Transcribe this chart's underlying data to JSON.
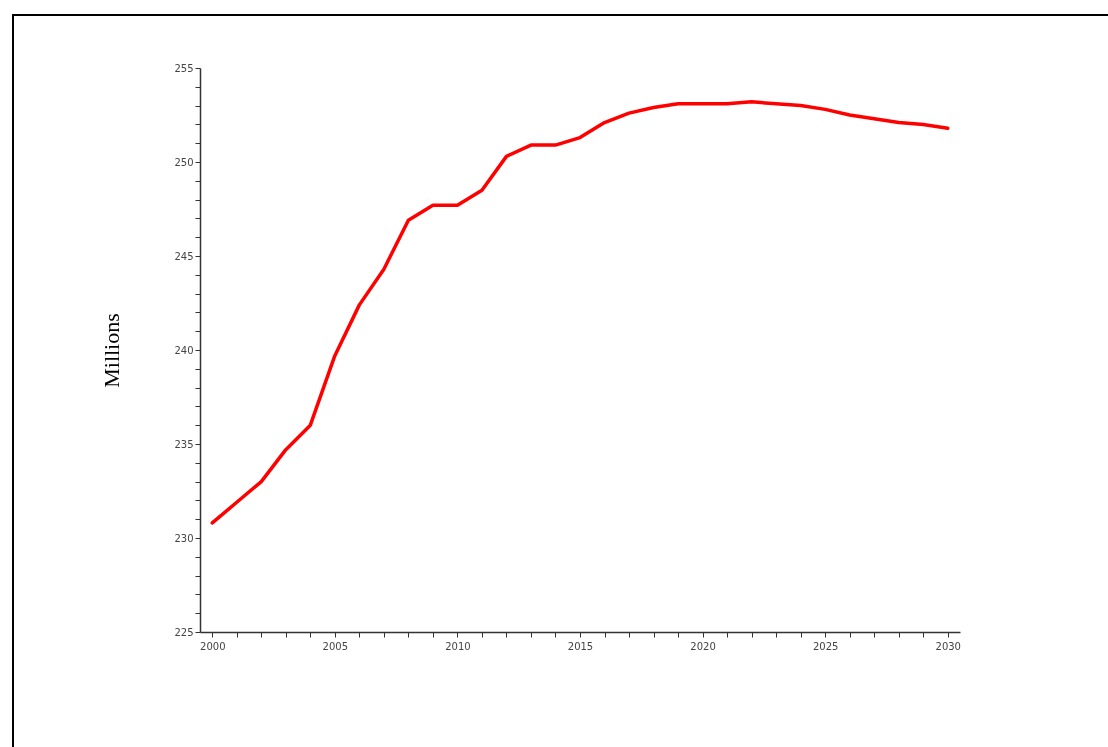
{
  "chart_data": {
    "type": "line",
    "ylabel": "Millions",
    "x": [
      2000,
      2001,
      2002,
      2003,
      2004,
      2005,
      2006,
      2007,
      2008,
      2009,
      2010,
      2011,
      2012,
      2013,
      2014,
      2015,
      2016,
      2017,
      2018,
      2019,
      2020,
      2021,
      2022,
      2023,
      2024,
      2025,
      2026,
      2027,
      2028,
      2029,
      2030
    ],
    "series": [
      {
        "color": "#ff0000",
        "values": [
          230.8,
          231.9,
          233.0,
          234.7,
          236.0,
          239.7,
          242.4,
          244.3,
          246.9,
          247.7,
          247.7,
          248.5,
          250.3,
          250.9,
          250.9,
          251.3,
          252.1,
          252.6,
          252.9,
          253.1,
          253.1,
          253.1,
          253.2,
          253.1,
          253.0,
          252.8,
          252.5,
          252.3,
          252.1,
          252.0,
          251.8
        ]
      }
    ],
    "xlim": [
      1999.5,
      2030.5
    ],
    "xticks": [
      2000,
      {
        "value": 2001,
        "label": null
      },
      {
        "value": 2002,
        "label": null
      },
      {
        "value": 2003,
        "label": null
      },
      {
        "value": 2004,
        "label": null
      },
      2005,
      {
        "value": 2006,
        "label": null
      },
      {
        "value": 2007,
        "label": null
      },
      {
        "value": 2008,
        "label": null
      },
      {
        "value": 2009,
        "label": null
      },
      2010,
      {
        "value": 2011,
        "label": null
      },
      {
        "value": 2012,
        "label": null
      },
      {
        "value": 2013,
        "label": null
      },
      {
        "value": 2014,
        "label": null
      },
      2015,
      {
        "value": 2016,
        "label": null
      },
      {
        "value": 2017,
        "label": null
      },
      {
        "value": 2018,
        "label": null
      },
      {
        "value": 2019,
        "label": null
      },
      2020,
      {
        "value": 2021,
        "label": null
      },
      {
        "value": 2022,
        "label": null
      },
      {
        "value": 2023,
        "label": null
      },
      {
        "value": 2024,
        "label": null
      },
      2025,
      {
        "value": 2026,
        "label": null
      },
      {
        "value": 2027,
        "label": null
      },
      {
        "value": 2028,
        "label": null
      },
      {
        "value": 2029,
        "label": null
      },
      2030
    ],
    "ylim": [
      225,
      255
    ],
    "yticks": [
      225,
      {
        "value": 226,
        "label": null
      },
      {
        "value": 227,
        "label": null
      },
      {
        "value": 228,
        "label": null
      },
      {
        "value": 229,
        "label": null
      },
      230,
      {
        "value": 231,
        "label": null
      },
      {
        "value": 232,
        "label": null
      },
      {
        "value": 233,
        "label": null
      },
      {
        "value": 234,
        "label": null
      },
      235,
      {
        "value": 236,
        "label": null
      },
      {
        "value": 237,
        "label": null
      },
      {
        "value": 238,
        "label": null
      },
      {
        "value": 239,
        "label": null
      },
      240,
      {
        "value": 241,
        "label": null
      },
      {
        "value": 242,
        "label": null
      },
      {
        "value": 243,
        "label": null
      },
      {
        "value": 244,
        "label": null
      },
      245,
      {
        "value": 246,
        "label": null
      },
      {
        "value": 247,
        "label": null
      },
      {
        "value": 248,
        "label": null
      },
      {
        "value": 249,
        "label": null
      },
      250,
      {
        "value": 251,
        "label": null
      },
      {
        "value": 252,
        "label": null
      },
      {
        "value": 253,
        "label": null
      },
      {
        "value": 254,
        "label": null
      },
      255
    ],
    "grid": false,
    "legend": false,
    "marker": "none",
    "line_style": "solid"
  }
}
